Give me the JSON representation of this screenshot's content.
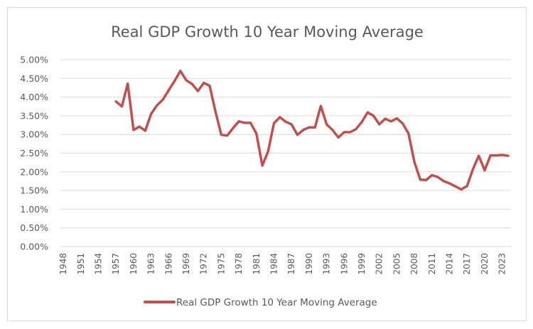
{
  "chart_data": {
    "type": "line",
    "title": "Real GDP Growth 10 Year Moving Average",
    "xlabel": "",
    "ylabel": "",
    "ylim": [
      0,
      5
    ],
    "y_ticks": [
      "0.00%",
      "0.50%",
      "1.00%",
      "1.50%",
      "2.00%",
      "2.50%",
      "3.00%",
      "3.50%",
      "4.00%",
      "4.50%",
      "5.00%"
    ],
    "y_tick_values": [
      0,
      0.5,
      1.0,
      1.5,
      2.0,
      2.5,
      3.0,
      3.5,
      4.0,
      4.5,
      5.0
    ],
    "grid": true,
    "legend_position": "bottom",
    "x_categories": [
      1948,
      1949,
      1950,
      1951,
      1952,
      1953,
      1954,
      1955,
      1956,
      1957,
      1958,
      1959,
      1960,
      1961,
      1962,
      1963,
      1964,
      1965,
      1966,
      1967,
      1968,
      1969,
      1970,
      1971,
      1972,
      1973,
      1974,
      1975,
      1976,
      1977,
      1978,
      1979,
      1980,
      1981,
      1982,
      1983,
      1984,
      1985,
      1986,
      1987,
      1988,
      1989,
      1990,
      1991,
      1992,
      1993,
      1994,
      1995,
      1996,
      1997,
      1998,
      1999,
      2000,
      2001,
      2002,
      2003,
      2004,
      2005,
      2006,
      2007,
      2008,
      2009,
      2010,
      2011,
      2012,
      2013,
      2014,
      2015,
      2016,
      2017,
      2018,
      2019,
      2020,
      2021,
      2022,
      2023,
      2024
    ],
    "x_tick_labels": [
      "1948",
      "1951",
      "1954",
      "1957",
      "1960",
      "1963",
      "1966",
      "1969",
      "1972",
      "1975",
      "1978",
      "1981",
      "1984",
      "1987",
      "1990",
      "1993",
      "1996",
      "1999",
      "2002",
      "2005",
      "2008",
      "2011",
      "2014",
      "2017",
      "2020",
      "2023"
    ],
    "series": [
      {
        "name": "Real GDP Growth 10 Year Moving Average",
        "color": "#c0504d",
        "unit": "%",
        "values": [
          null,
          null,
          null,
          null,
          null,
          null,
          null,
          null,
          null,
          3.88,
          3.75,
          4.36,
          3.12,
          3.21,
          3.1,
          3.55,
          3.78,
          3.93,
          4.18,
          4.43,
          4.7,
          4.45,
          4.35,
          4.16,
          4.38,
          4.3,
          3.61,
          2.99,
          2.97,
          3.17,
          3.35,
          3.31,
          3.31,
          3.02,
          2.17,
          2.55,
          3.3,
          3.46,
          3.34,
          3.27,
          2.99,
          3.12,
          3.19,
          3.19,
          3.76,
          3.27,
          3.12,
          2.92,
          3.06,
          3.06,
          3.14,
          3.33,
          3.59,
          3.5,
          3.27,
          3.42,
          3.35,
          3.43,
          3.29,
          3.02,
          2.26,
          1.79,
          1.78,
          1.91,
          1.86,
          1.75,
          1.69,
          1.61,
          1.53,
          1.62,
          2.07,
          2.43,
          2.04,
          2.44,
          2.44,
          2.45,
          2.43
        ]
      }
    ]
  },
  "legend": {
    "label": "Real GDP Growth 10 Year Moving Average"
  }
}
